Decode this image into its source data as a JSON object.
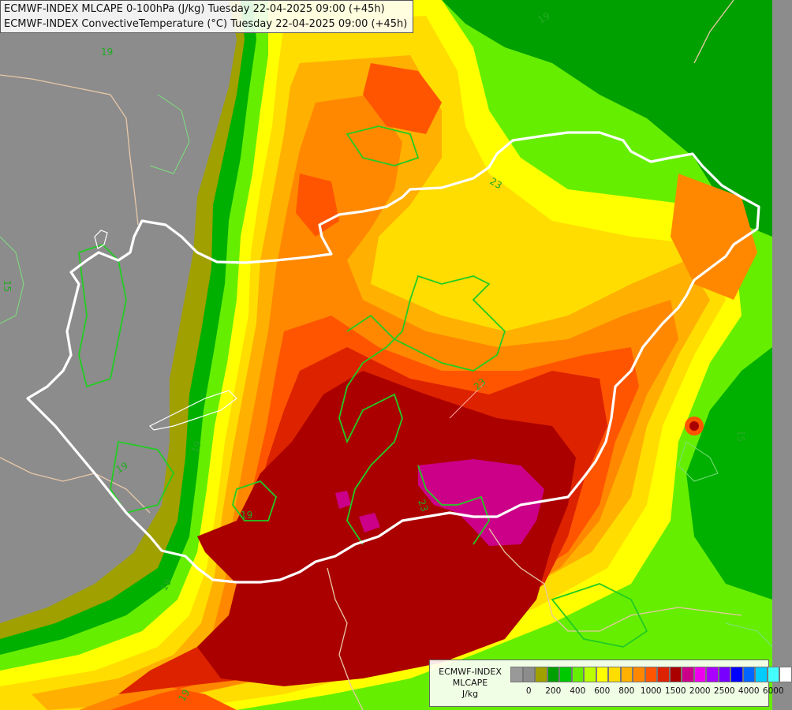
{
  "title": {
    "line1": "ECMWF-INDEX MLCAPE 0-100hPa (J/kg) Tuesday 22-04-2025 09:00 (+45h)",
    "line2": "ECMWF-INDEX ConvectiveTemperature (°C) Tuesday 22-04-2025 09:00 (+45h)"
  },
  "legend": {
    "line1": "ECMWF-INDEX",
    "line2": "MLCAPE",
    "line3": "J/kg",
    "ticks": [
      "0",
      "200",
      "400",
      "600",
      "800",
      "1000",
      "1500",
      "2000",
      "2500",
      "4000",
      "6000"
    ],
    "colors": [
      "#999999",
      "#8c8c8c",
      "#a0a000",
      "#00a000",
      "#00c800",
      "#66ee00",
      "#bbff00",
      "#ffff00",
      "#ffdd00",
      "#ffb000",
      "#ff8800",
      "#ff5500",
      "#dd2200",
      "#aa0000",
      "#cc0088",
      "#ee00ee",
      "#aa00ff",
      "#7700ff",
      "#0000ff",
      "#0066ff",
      "#00ccff",
      "#44ffff",
      "#ffffff"
    ]
  },
  "contour_labels": [
    "19",
    "19",
    "23",
    "15",
    "19",
    "19",
    "15",
    "23",
    "23",
    "19",
    "19",
    "19"
  ],
  "palette": {
    "background_gray": "#8c8c8c",
    "olive": "#a0a000",
    "green": "#00b000",
    "light_green": "#66ee00",
    "yellow": "#ffff00",
    "orange": "#ff8800",
    "dark_red": "#aa0000",
    "magenta": "#cc0088",
    "border_white": "#ffffff",
    "isoline_green": "#22cc22"
  }
}
